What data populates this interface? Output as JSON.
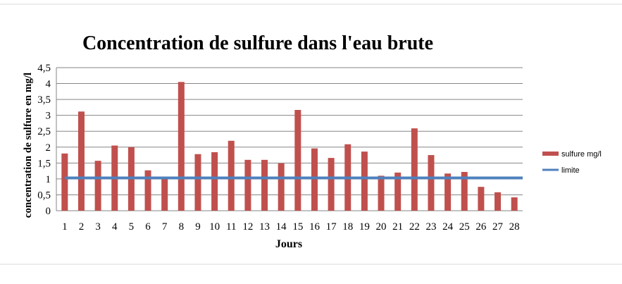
{
  "chart_data": {
    "type": "bar",
    "title": "Concentration de sulfure dans l'eau brute",
    "xlabel": "Jours",
    "ylabel": "concentration de sulfure en mg/l",
    "categories": [
      "1",
      "2",
      "3",
      "4",
      "5",
      "6",
      "7",
      "8",
      "9",
      "10",
      "11",
      "12",
      "13",
      "14",
      "15",
      "16",
      "17",
      "18",
      "19",
      "20",
      "21",
      "22",
      "23",
      "24",
      "25",
      "26",
      "27",
      "28"
    ],
    "series": [
      {
        "name": "sulfure mg/l",
        "color": "#C0504D",
        "values": [
          1.8,
          3.12,
          1.57,
          2.05,
          2.0,
          1.27,
          1.03,
          4.05,
          1.78,
          1.84,
          2.2,
          1.6,
          1.6,
          1.49,
          3.17,
          1.96,
          1.66,
          2.09,
          1.86,
          1.1,
          1.2,
          2.59,
          1.75,
          1.17,
          1.22,
          0.75,
          0.58,
          0.42
        ]
      }
    ],
    "limit": {
      "name": "limite",
      "value": 1.03,
      "color": "#4F81BD"
    },
    "ylim": [
      0,
      4.5
    ],
    "yticks": [
      "0",
      "0,5",
      "1",
      "1,5",
      "2",
      "2,5",
      "3",
      "3,5",
      "4",
      "4,5"
    ],
    "grid": true,
    "legend": "right"
  }
}
